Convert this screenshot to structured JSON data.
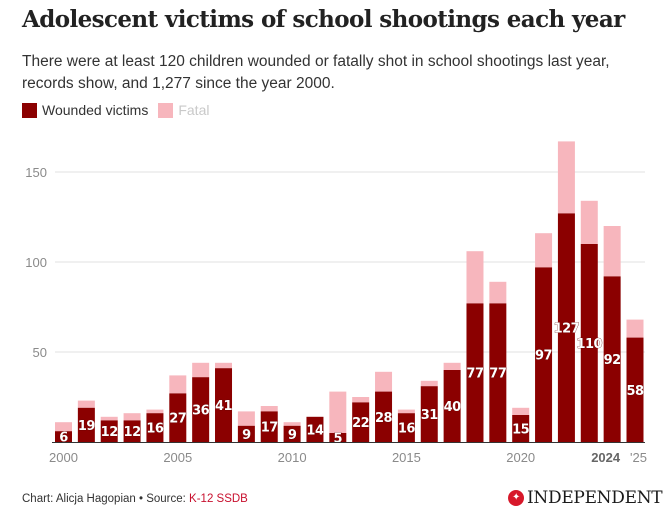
{
  "header": {
    "title": "Adolescent victims of school shootings each year",
    "subtitle": "There were at least 120 children wounded or fatally shot in school shootings last year, records show, and 1,277 since the year 2000."
  },
  "legend": {
    "wounded_label": "Wounded victims",
    "fatal_label": "Fatal"
  },
  "colors": {
    "wounded": "#8b0000",
    "fatal": "#f7b6bd",
    "gridline": "#e2e2e2",
    "axis_text": "#8a8a8a"
  },
  "footer": {
    "credit": "Chart: Alicja Hagopian",
    "separator": " • ",
    "source_prefix": "Source: ",
    "source_link": "K-12 SSDB",
    "brand": "INDEPENDENT",
    "brand_icon": "eagle-logo-icon"
  },
  "chart_data": {
    "type": "bar",
    "stacked": true,
    "title": "Adolescent victims of school shootings each year",
    "xlabel": "",
    "ylabel": "",
    "ylim": [
      0,
      170
    ],
    "yticks": [
      50,
      100,
      150
    ],
    "grid": true,
    "legend_position": "top-left",
    "x_tick_labels": [
      {
        "year": 2000,
        "label": "2000",
        "bold": false
      },
      {
        "year": 2005,
        "label": "2005",
        "bold": false
      },
      {
        "year": 2010,
        "label": "2010",
        "bold": false
      },
      {
        "year": 2015,
        "label": "2015",
        "bold": false
      },
      {
        "year": 2020,
        "label": "2020",
        "bold": false
      },
      {
        "year": 2024,
        "label": "2024",
        "bold": true
      },
      {
        "year": 2025,
        "label": "'25",
        "bold": false
      }
    ],
    "categories": [
      2000,
      2001,
      2002,
      2003,
      2004,
      2005,
      2006,
      2007,
      2008,
      2009,
      2010,
      2011,
      2012,
      2013,
      2014,
      2015,
      2016,
      2017,
      2018,
      2019,
      2020,
      2021,
      2022,
      2023,
      2024,
      2025
    ],
    "series": [
      {
        "name": "Wounded victims",
        "values": [
          6,
          19,
          12,
          12,
          16,
          27,
          36,
          41,
          9,
          17,
          9,
          14,
          5,
          22,
          28,
          16,
          31,
          40,
          77,
          77,
          15,
          97,
          127,
          110,
          92,
          58
        ]
      },
      {
        "name": "Fatal",
        "values": [
          5,
          4,
          2,
          4,
          2,
          10,
          8,
          3,
          8,
          3,
          2,
          0,
          23,
          3,
          11,
          2,
          3,
          4,
          29,
          12,
          4,
          19,
          40,
          24,
          28,
          10
        ]
      }
    ]
  }
}
